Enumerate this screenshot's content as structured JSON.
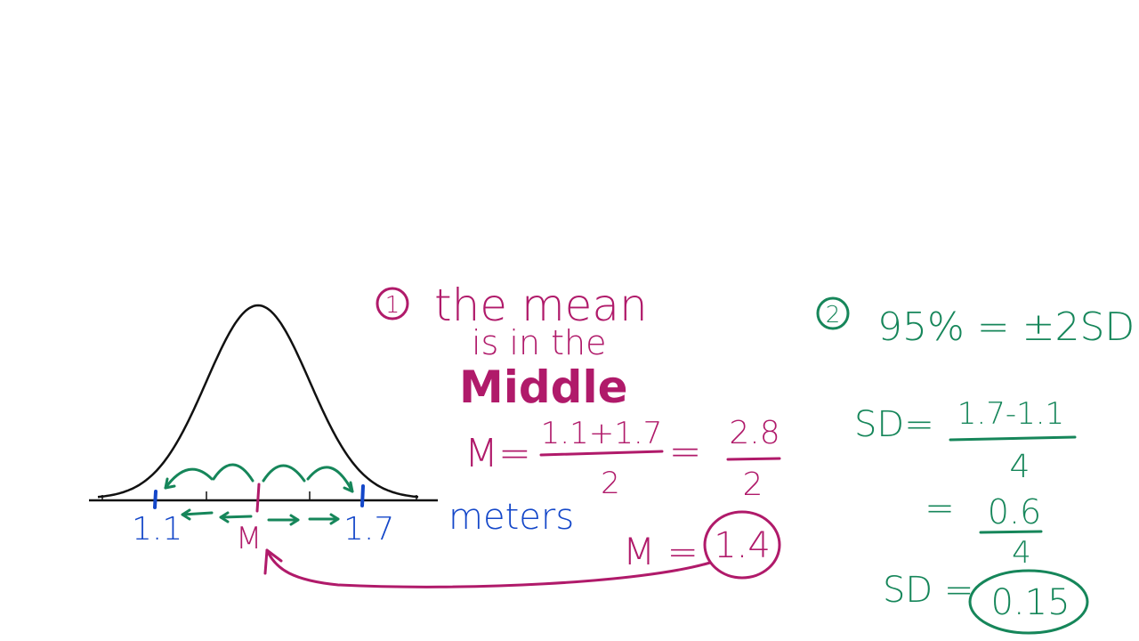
{
  "colors": {
    "magenta": "#b01a6a",
    "blue": "#1447c9",
    "green": "#16865a",
    "curve": "#111111"
  },
  "curve": {
    "tick_labels": [
      "1.1",
      "M",
      "1.7"
    ],
    "unit": "meters"
  },
  "step1": {
    "number": "1",
    "line1": "the mean",
    "line2": "is in the",
    "line3": "Middle",
    "m_label": "M=",
    "frac1_num": "1.1+1.7",
    "frac1_den": "2",
    "equals": "=",
    "frac2_num": "2.8",
    "frac2_den": "2",
    "result_label": "M =",
    "result_value": "1.4"
  },
  "step2": {
    "number": "2",
    "rule": "95% = ±2SD's",
    "sd_label": "SD=",
    "frac1_num": "1.7-1.1",
    "frac1_den": "4",
    "equals": "=",
    "frac2_num": "0.6",
    "frac2_den": "4",
    "result_label": "SD =",
    "result_value": "0.15"
  }
}
